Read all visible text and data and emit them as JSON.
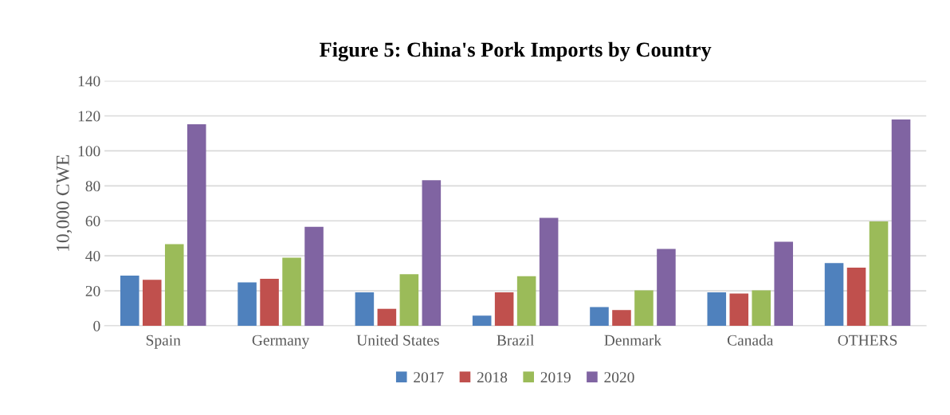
{
  "chart_data": {
    "type": "bar",
    "title": "Figure 5: China's Pork Imports by Country",
    "ylabel": "10,000 CWE",
    "categories": [
      "Spain",
      "Germany",
      "United States",
      "Brazil",
      "Denmark",
      "Canada",
      "OTHERS"
    ],
    "series": [
      {
        "name": "2017",
        "color": "#4f81bd",
        "values": [
          28.7,
          24.8,
          19.1,
          5.8,
          10.7,
          19.1,
          35.9
        ]
      },
      {
        "name": "2018",
        "color": "#c0504d",
        "values": [
          26.3,
          26.9,
          9.7,
          19.1,
          9.0,
          18.4,
          33.2
        ]
      },
      {
        "name": "2019",
        "color": "#9bbb59",
        "values": [
          46.7,
          38.9,
          29.5,
          28.3,
          20.3,
          20.3,
          59.6
        ]
      },
      {
        "name": "2020",
        "color": "#8064a2",
        "values": [
          115.2,
          56.6,
          83.2,
          61.7,
          43.9,
          48.0,
          118.0
        ]
      }
    ],
    "ylim": [
      0,
      140
    ],
    "yticks": [
      0,
      20,
      40,
      60,
      80,
      100,
      120,
      140
    ],
    "grid": "y",
    "legend": "bottom"
  }
}
